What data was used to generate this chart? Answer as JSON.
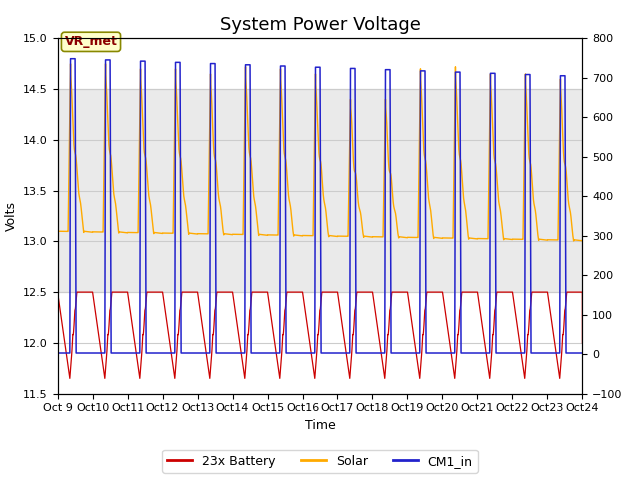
{
  "title": "System Power Voltage",
  "xlabel": "Time",
  "ylabel": "Volts",
  "ylim_left": [
    11.5,
    15.0
  ],
  "ylim_right": [
    -100,
    800
  ],
  "yticks_left": [
    11.5,
    12.0,
    12.5,
    13.0,
    13.5,
    14.0,
    14.5,
    15.0
  ],
  "yticks_right": [
    -100,
    0,
    100,
    200,
    300,
    400,
    500,
    600,
    700,
    800
  ],
  "xtick_labels": [
    "Oct 9",
    "Oct 10",
    "Oct 11",
    "Oct 12",
    "Oct 13",
    "Oct 14",
    "Oct 15",
    "Oct 16",
    "Oct 17",
    "Oct 18",
    "Oct 19",
    "Oct 20",
    "Oct 21",
    "Oct 22",
    "Oct 23",
    "Oct 24"
  ],
  "n_days": 15,
  "color_battery": "#cc0000",
  "color_solar": "#ffaa00",
  "color_cm1": "#2222cc",
  "bg_band_color": "#cccccc",
  "bg_band_alpha": 0.4,
  "band_ylim": [
    12.5,
    14.5
  ],
  "annotation_text": "VR_met",
  "legend_labels": [
    "23x Battery",
    "Solar",
    "CM1_in"
  ],
  "title_fontsize": 13,
  "axis_fontsize": 9,
  "tick_fontsize": 8
}
